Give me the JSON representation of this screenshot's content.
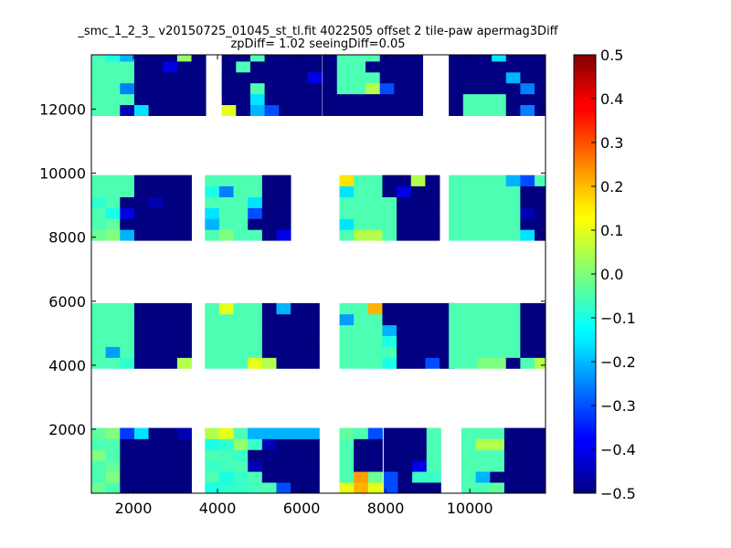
{
  "chart_data": {
    "type": "heatmap",
    "title": "_smc_1_2_3_ v20150725_01045_st_tl.fit 4022505 offset 2 tile-paw apermag3Diff",
    "subtitle": "zpDiff= 1.02 seeingDiff=0.05",
    "xlim": [
      1000,
      11800
    ],
    "ylim": [
      0,
      13700
    ],
    "x_ticks": [
      2000,
      4000,
      6000,
      8000,
      10000
    ],
    "y_ticks": [
      2000,
      4000,
      6000,
      8000,
      10000,
      12000
    ],
    "cell_size": 340,
    "color_scale": {
      "colormap": "jet",
      "vmin": -0.5,
      "vmax": 0.5,
      "ticks": [
        -0.5,
        -0.4,
        -0.3,
        -0.2,
        -0.1,
        0.0,
        0.1,
        0.2,
        0.3,
        0.4,
        0.5
      ]
    },
    "grid": false,
    "legend": "colorbar-right",
    "blocks": [
      {
        "x0": 1000,
        "y0": 0,
        "nx": 7,
        "ny": 6,
        "values": [
          -0.02,
          -0.05,
          -0.5,
          -0.5,
          -0.5,
          -0.5,
          -0.5,
          -0.05,
          0.0,
          -0.5,
          -0.5,
          -0.5,
          -0.5,
          -0.5,
          -0.05,
          -0.03,
          -0.5,
          -0.5,
          -0.5,
          -0.5,
          -0.5,
          0.0,
          -0.05,
          -0.5,
          -0.5,
          -0.5,
          -0.5,
          -0.5,
          -0.05,
          -0.05,
          -0.5,
          -0.5,
          -0.5,
          -0.5,
          -0.5,
          -0.03,
          0.0,
          -0.32,
          -0.15,
          -0.5,
          -0.5,
          -0.45
        ]
      },
      {
        "x0": 3700,
        "y0": 0,
        "nx": 8,
        "ny": 6,
        "values": [
          -0.1,
          -0.08,
          -0.07,
          -0.06,
          -0.05,
          -0.3,
          -0.5,
          -0.5,
          -0.05,
          -0.1,
          -0.07,
          -0.05,
          -0.5,
          -0.5,
          -0.5,
          -0.5,
          -0.07,
          -0.06,
          -0.05,
          -0.45,
          -0.5,
          -0.5,
          -0.5,
          -0.5,
          -0.05,
          -0.06,
          -0.07,
          -0.5,
          -0.5,
          -0.5,
          -0.5,
          -0.5,
          -0.1,
          -0.08,
          0.02,
          -0.07,
          -0.45,
          -0.5,
          -0.5,
          -0.5,
          0.05,
          0.1,
          -0.05,
          -0.2,
          -0.2,
          -0.2,
          -0.2,
          -0.2
        ]
      },
      {
        "x0": 6900,
        "y0": 0,
        "nx": 3,
        "ny": 6,
        "values": [
          0.1,
          0.2,
          0.1,
          -0.05,
          0.22,
          -0.02,
          -0.05,
          -0.5,
          -0.5,
          -0.05,
          -0.5,
          -0.5,
          -0.05,
          -0.5,
          -0.5,
          -0.03,
          -0.05,
          -0.3
        ]
      },
      {
        "x0": 7950,
        "y0": 0,
        "nx": 4,
        "ny": 6,
        "values": [
          -0.3,
          -0.5,
          -0.5,
          -0.5,
          -0.3,
          -0.5,
          -0.07,
          -0.07,
          -0.5,
          -0.5,
          -0.4,
          -0.05,
          -0.5,
          -0.5,
          -0.5,
          -0.05,
          -0.5,
          -0.5,
          -0.5,
          -0.05,
          -0.5,
          -0.5,
          -0.5,
          -0.05
        ]
      },
      {
        "x0": 9800,
        "y0": 0,
        "nx": 6,
        "ny": 6,
        "values": [
          -0.05,
          -0.05,
          -0.03,
          -0.5,
          -0.5,
          -0.5,
          -0.05,
          -0.2,
          -0.5,
          -0.5,
          -0.5,
          -0.5,
          -0.05,
          -0.05,
          -0.05,
          -0.5,
          -0.5,
          -0.5,
          -0.05,
          -0.05,
          -0.05,
          -0.5,
          -0.5,
          -0.5,
          -0.05,
          0.05,
          0.05,
          -0.5,
          -0.5,
          -0.5,
          -0.05,
          -0.05,
          -0.05,
          -0.5,
          -0.5,
          -0.5
        ]
      },
      {
        "x0": 1000,
        "y0": 3900,
        "nx": 7,
        "ny": 6,
        "values": [
          -0.05,
          -0.05,
          -0.08,
          -0.5,
          -0.5,
          -0.5,
          0.05,
          -0.05,
          -0.22,
          -0.05,
          -0.5,
          -0.5,
          -0.5,
          -0.5,
          -0.05,
          -0.05,
          -0.05,
          -0.5,
          -0.5,
          -0.5,
          -0.5,
          -0.05,
          -0.05,
          -0.05,
          -0.5,
          -0.5,
          -0.5,
          -0.5,
          -0.05,
          -0.05,
          -0.05,
          -0.5,
          -0.5,
          -0.5,
          -0.5,
          -0.05,
          -0.05,
          -0.05,
          -0.5,
          -0.5,
          -0.5,
          -0.5
        ]
      },
      {
        "x0": 3700,
        "y0": 3900,
        "nx": 8,
        "ny": 6,
        "values": [
          -0.05,
          -0.05,
          -0.05,
          0.1,
          0.05,
          -0.5,
          -0.5,
          -0.5,
          -0.05,
          -0.05,
          -0.05,
          -0.05,
          -0.5,
          -0.5,
          -0.5,
          -0.5,
          -0.05,
          -0.05,
          -0.05,
          -0.05,
          -0.5,
          -0.5,
          -0.5,
          -0.5,
          -0.05,
          -0.05,
          -0.05,
          -0.05,
          -0.5,
          -0.5,
          -0.5,
          -0.5,
          -0.05,
          -0.05,
          -0.05,
          -0.05,
          -0.5,
          -0.5,
          -0.5,
          -0.5,
          -0.05,
          0.1,
          -0.05,
          -0.05,
          -0.5,
          -0.2,
          -0.5,
          -0.5
        ]
      },
      {
        "x0": 6900,
        "y0": 3900,
        "nx": 8,
        "ny": 6,
        "values": [
          -0.05,
          -0.05,
          -0.05,
          -0.1,
          -0.5,
          -0.5,
          -0.3,
          -0.5,
          -0.05,
          -0.05,
          -0.05,
          -0.05,
          -0.5,
          -0.5,
          -0.5,
          -0.5,
          -0.05,
          -0.05,
          -0.05,
          -0.1,
          -0.5,
          -0.5,
          -0.5,
          -0.5,
          -0.05,
          -0.05,
          -0.05,
          -0.2,
          -0.5,
          -0.5,
          -0.5,
          -0.5,
          -0.22,
          -0.05,
          -0.05,
          -0.5,
          -0.5,
          -0.5,
          -0.5,
          -0.5,
          -0.05,
          -0.05,
          0.2,
          -0.5,
          -0.5,
          -0.5,
          -0.5,
          -0.5
        ]
      },
      {
        "x0": 9500,
        "y0": 3900,
        "nx": 7,
        "ny": 6,
        "values": [
          -0.05,
          -0.05,
          0.0,
          0.0,
          -0.5,
          -0.05,
          0.05,
          -0.05,
          -0.05,
          -0.05,
          -0.05,
          -0.05,
          -0.5,
          -0.5,
          -0.05,
          -0.05,
          -0.05,
          -0.05,
          -0.05,
          -0.5,
          -0.5,
          -0.05,
          -0.05,
          -0.05,
          -0.05,
          -0.05,
          -0.5,
          -0.5,
          -0.05,
          -0.05,
          -0.05,
          -0.05,
          -0.05,
          -0.5,
          -0.5,
          -0.05,
          -0.05,
          -0.05,
          -0.05,
          -0.05,
          -0.5,
          -0.5
        ]
      },
      {
        "x0": 1000,
        "y0": 7900,
        "nx": 7,
        "ny": 6,
        "values": [
          -0.02,
          0.0,
          -0.2,
          -0.5,
          -0.5,
          -0.5,
          -0.5,
          -0.05,
          -0.03,
          -0.5,
          -0.5,
          -0.5,
          -0.5,
          -0.5,
          -0.05,
          -0.1,
          -0.4,
          -0.5,
          -0.5,
          -0.5,
          -0.5,
          -0.08,
          -0.05,
          -0.5,
          -0.5,
          -0.45,
          -0.5,
          -0.5,
          -0.05,
          -0.05,
          -0.05,
          -0.5,
          -0.5,
          -0.5,
          -0.5,
          -0.05,
          -0.05,
          -0.05,
          -0.5,
          -0.5,
          -0.5,
          -0.5
        ]
      },
      {
        "x0": 3700,
        "y0": 7900,
        "nx": 6,
        "ny": 6,
        "values": [
          -0.05,
          0.0,
          -0.05,
          -0.05,
          -0.5,
          -0.4,
          -0.2,
          -0.05,
          -0.05,
          -0.5,
          -0.5,
          -0.5,
          -0.15,
          -0.05,
          -0.05,
          -0.3,
          -0.5,
          -0.5,
          -0.05,
          -0.05,
          -0.05,
          -0.15,
          -0.5,
          -0.5,
          -0.1,
          -0.25,
          -0.05,
          -0.05,
          -0.5,
          -0.5,
          -0.05,
          -0.05,
          -0.05,
          -0.05,
          -0.5,
          -0.5
        ]
      },
      {
        "x0": 6900,
        "y0": 7900,
        "nx": 7,
        "ny": 6,
        "values": [
          -0.05,
          0.05,
          0.05,
          -0.05,
          -0.5,
          -0.5,
          -0.5,
          -0.15,
          -0.05,
          -0.05,
          -0.05,
          -0.5,
          -0.5,
          -0.5,
          -0.05,
          -0.05,
          -0.05,
          -0.05,
          -0.5,
          -0.5,
          -0.5,
          -0.05,
          -0.05,
          -0.05,
          -0.05,
          -0.5,
          -0.5,
          -0.5,
          -0.15,
          -0.05,
          -0.05,
          -0.5,
          -0.4,
          -0.5,
          -0.5,
          0.15,
          -0.05,
          -0.05,
          -0.5,
          -0.5,
          0.05,
          -0.5
        ]
      },
      {
        "x0": 9500,
        "y0": 7900,
        "nx": 7,
        "ny": 6,
        "values": [
          -0.05,
          -0.05,
          -0.05,
          -0.05,
          -0.05,
          -0.15,
          -0.5,
          -0.05,
          -0.05,
          -0.05,
          -0.05,
          -0.05,
          -0.5,
          -0.5,
          -0.05,
          -0.05,
          -0.05,
          -0.05,
          -0.05,
          -0.45,
          -0.5,
          -0.05,
          -0.05,
          -0.05,
          -0.05,
          -0.05,
          -0.5,
          -0.5,
          -0.05,
          -0.05,
          -0.05,
          -0.05,
          -0.05,
          -0.5,
          -0.5,
          -0.05,
          -0.05,
          -0.05,
          -0.05,
          -0.2,
          -0.3,
          -0.05
        ]
      },
      {
        "x0": 1000,
        "y0": 11800,
        "nx": 8,
        "ny": 6,
        "values": [
          -0.05,
          -0.05,
          -0.45,
          -0.15,
          -0.5,
          -0.5,
          -0.5,
          -0.5,
          -0.05,
          -0.05,
          -0.05,
          -0.5,
          -0.5,
          -0.5,
          -0.5,
          -0.5,
          -0.05,
          -0.05,
          -0.25,
          -0.5,
          -0.5,
          -0.5,
          -0.5,
          -0.5,
          -0.05,
          -0.05,
          -0.05,
          -0.5,
          -0.5,
          -0.5,
          -0.5,
          -0.5,
          -0.05,
          -0.05,
          -0.05,
          -0.5,
          -0.5,
          -0.4,
          -0.5,
          -0.5,
          -0.05,
          -0.1,
          -0.2,
          -0.5,
          -0.5,
          -0.5,
          0.02,
          -0.5
        ]
      },
      {
        "x0": 4100,
        "y0": 11800,
        "nx": 7,
        "ny": 6,
        "values": [
          0.1,
          -0.5,
          -0.2,
          -0.3,
          -0.5,
          -0.5,
          -0.5,
          -0.5,
          -0.5,
          -0.15,
          -0.5,
          -0.5,
          -0.5,
          -0.5,
          -0.5,
          -0.5,
          -0.05,
          -0.5,
          -0.5,
          -0.5,
          -0.5,
          -0.5,
          -0.5,
          -0.5,
          -0.5,
          -0.5,
          -0.5,
          -0.4,
          -0.5,
          -0.05,
          -0.5,
          -0.5,
          -0.5,
          -0.5,
          -0.5,
          -0.5,
          -0.5,
          -0.05,
          -0.5,
          -0.5,
          -0.5,
          -0.5
        ]
      },
      {
        "x0": 6500,
        "y0": 11800,
        "nx": 7,
        "ny": 6,
        "values": [
          -0.5,
          -0.5,
          -0.5,
          -0.5,
          -0.5,
          -0.5,
          -0.5,
          -0.5,
          -0.5,
          -0.5,
          -0.5,
          -0.5,
          -0.5,
          -0.5,
          -0.5,
          -0.05,
          -0.05,
          0.05,
          -0.3,
          -0.5,
          -0.5,
          -0.5,
          -0.05,
          -0.05,
          -0.05,
          -0.5,
          -0.5,
          -0.5,
          -0.5,
          -0.05,
          -0.05,
          -0.5,
          -0.5,
          -0.5,
          -0.5,
          -0.5,
          -0.05,
          -0.05,
          -0.05,
          -0.5,
          -0.5,
          -0.5
        ]
      },
      {
        "x0": 9500,
        "y0": 11800,
        "nx": 7,
        "ny": 6,
        "values": [
          -0.5,
          -0.05,
          -0.05,
          -0.05,
          -0.5,
          -0.25,
          -0.5,
          -0.5,
          -0.05,
          -0.05,
          -0.05,
          -0.5,
          -0.5,
          -0.5,
          -0.5,
          -0.5,
          -0.5,
          -0.5,
          -0.5,
          -0.25,
          -0.5,
          -0.5,
          -0.5,
          -0.5,
          -0.5,
          -0.2,
          -0.5,
          -0.5,
          -0.5,
          -0.5,
          -0.5,
          -0.5,
          -0.5,
          -0.5,
          -0.5,
          -0.5,
          -0.5,
          -0.5,
          -0.15,
          -0.5,
          -0.5,
          -0.5
        ]
      }
    ]
  }
}
